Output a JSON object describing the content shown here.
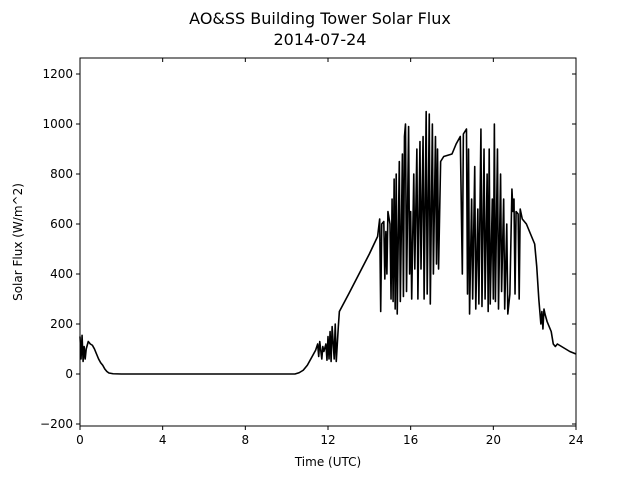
{
  "chart_data": {
    "type": "line",
    "title": "AO&SS Building Tower Solar Flux",
    "subtitle": "2014-07-24",
    "xlabel": "Time (UTC)",
    "ylabel": "Solar Flux (W/m^2)",
    "xlim": [
      0,
      24
    ],
    "ylim": [
      -208,
      1264
    ],
    "xticks": [
      0,
      4,
      8,
      12,
      16,
      20,
      24
    ],
    "yticks": [
      {
        "value": -200,
        "label": "−200"
      },
      0,
      200,
      400,
      600,
      800,
      1000,
      1200
    ],
    "x": [
      0,
      0.05,
      0.1,
      0.15,
      0.2,
      0.25,
      0.3,
      0.4,
      0.5,
      0.6,
      0.7,
      0.8,
      0.9,
      1.0,
      1.1,
      1.2,
      1.3,
      1.4,
      1.6,
      2.0,
      10.4,
      10.6,
      10.8,
      11.0,
      11.2,
      11.4,
      11.5,
      11.55,
      11.6,
      11.7,
      11.75,
      11.8,
      11.9,
      11.95,
      12.0,
      12.05,
      12.1,
      12.15,
      12.2,
      12.3,
      12.35,
      12.4,
      12.5,
      12.55,
      13.0,
      13.5,
      14.0,
      14.4,
      14.5,
      14.55,
      14.6,
      14.7,
      14.75,
      14.8,
      14.85,
      14.9,
      15.0,
      15.05,
      15.1,
      15.15,
      15.2,
      15.25,
      15.3,
      15.35,
      15.45,
      15.5,
      15.6,
      15.65,
      15.7,
      15.75,
      15.8,
      15.9,
      15.95,
      16.0,
      16.05,
      16.15,
      16.2,
      16.3,
      16.35,
      16.45,
      16.5,
      16.6,
      16.65,
      16.75,
      16.8,
      16.9,
      16.95,
      17.05,
      17.1,
      17.2,
      17.25,
      17.3,
      17.35,
      17.45,
      17.6,
      18.0,
      18.2,
      18.4,
      18.5,
      18.55,
      18.7,
      18.75,
      18.8,
      18.85,
      18.95,
      19.0,
      19.1,
      19.15,
      19.25,
      19.3,
      19.4,
      19.45,
      19.55,
      19.6,
      19.7,
      19.75,
      19.8,
      19.85,
      19.95,
      20.0,
      20.05,
      20.1,
      20.2,
      20.25,
      20.35,
      20.4,
      20.5,
      20.55,
      20.65,
      20.7,
      20.8,
      20.9,
      20.95,
      21.0,
      21.05,
      21.1,
      21.2,
      21.25,
      21.3,
      21.4,
      21.6,
      21.8,
      22.0,
      22.1,
      22.2,
      22.3,
      22.35,
      22.4,
      22.45,
      22.5,
      22.6,
      22.7,
      22.8,
      22.9,
      23.0,
      23.1,
      23.3,
      23.5,
      23.7,
      24.0
    ],
    "series": [
      {
        "name": "Solar Flux",
        "color": "#000000",
        "values": [
          150,
          60,
          155,
          50,
          110,
          60,
          100,
          130,
          120,
          115,
          100,
          80,
          60,
          45,
          35,
          20,
          10,
          4,
          1,
          0,
          0,
          5,
          15,
          35,
          65,
          95,
          120,
          70,
          130,
          60,
          110,
          90,
          120,
          55,
          150,
          60,
          170,
          50,
          190,
          60,
          200,
          50,
          190,
          250,
          320,
          400,
          480,
          550,
          620,
          250,
          600,
          610,
          380,
          570,
          400,
          650,
          600,
          300,
          700,
          290,
          780,
          260,
          800,
          240,
          850,
          290,
          880,
          310,
          950,
          1000,
          330,
          990,
          400,
          650,
          300,
          800,
          420,
          900,
          300,
          930,
          420,
          950,
          300,
          1050,
          320,
          1040,
          280,
          1000,
          400,
          950,
          440,
          900,
          420,
          850,
          870,
          880,
          920,
          950,
          400,
          960,
          980,
          320,
          900,
          240,
          700,
          300,
          830,
          260,
          660,
          280,
          980,
          270,
          900,
          300,
          800,
          250,
          900,
          280,
          700,
          300,
          1000,
          290,
          900,
          260,
          800,
          330,
          700,
          260,
          600,
          240,
          320,
          740,
          650,
          700,
          320,
          650,
          640,
          300,
          660,
          620,
          600,
          560,
          520,
          430,
          300,
          200,
          250,
          180,
          260,
          240,
          210,
          190,
          170,
          120,
          110,
          120,
          110,
          100,
          90,
          80
        ]
      }
    ]
  }
}
